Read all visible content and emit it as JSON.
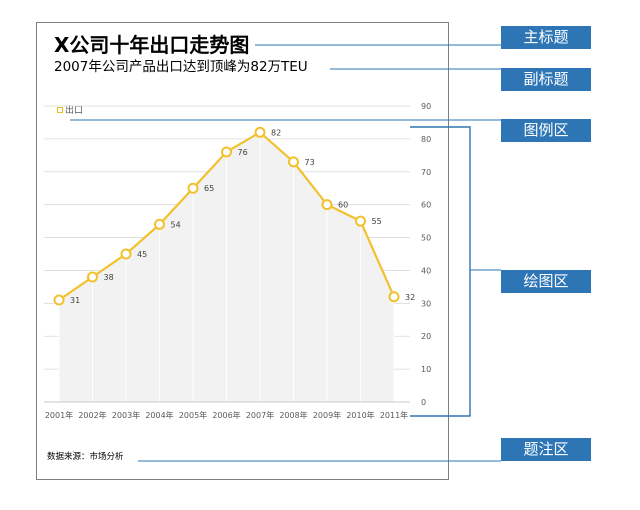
{
  "annotations": {
    "main_title_tag": "主标题",
    "subtitle_tag": "副标题",
    "legend_tag": "图例区",
    "plot_tag": "绘图区",
    "caption_tag": "题注区"
  },
  "caption": "数据来源：市场分析",
  "colors": {
    "line": "#f2c12e",
    "tag_bg": "#2e75b6",
    "connector": "#2e75b6",
    "area": "#f2f2f2",
    "grid": "#d9d9d9"
  },
  "chart_data": {
    "type": "line",
    "title": "X公司十年出口走势图",
    "subtitle": "2007年公司产品出口达到顶峰为82万TEU",
    "categories": [
      "2001年",
      "2002年",
      "2003年",
      "2004年",
      "2005年",
      "2006年",
      "2007年",
      "2008年",
      "2009年",
      "2010年",
      "2011年"
    ],
    "series": [
      {
        "name": "出口",
        "values": [
          31,
          38,
          45,
          54,
          65,
          76,
          82,
          73,
          60,
          55,
          32
        ]
      }
    ],
    "ylim": [
      0,
      90
    ],
    "yticks": [
      0,
      10,
      20,
      30,
      40,
      50,
      60,
      70,
      80,
      90
    ],
    "y_axis_side": "right",
    "grid": true,
    "legend_position": "top-left",
    "xlabel": "",
    "ylabel": ""
  }
}
